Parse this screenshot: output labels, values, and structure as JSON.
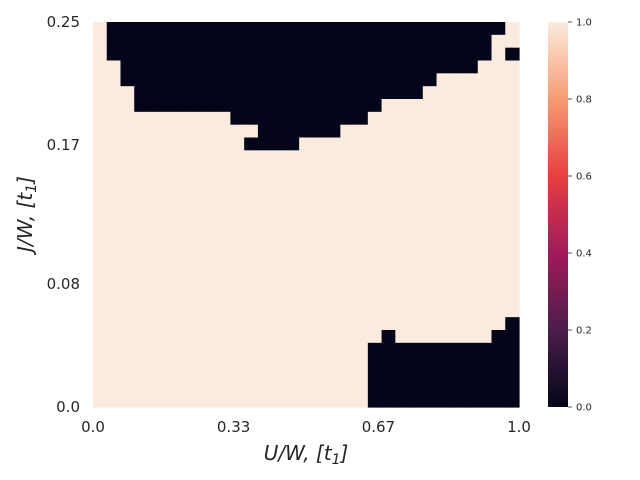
{
  "chart_data": {
    "type": "heatmap",
    "title": "",
    "xlabel": "U/W, [t",
    "xlabel_sub": "1",
    "xlabel_close": "]",
    "ylabel": "J/W, [t",
    "ylabel_sub": "1",
    "ylabel_close": "]",
    "xlim": [
      0.0,
      1.0
    ],
    "ylim": [
      0.0,
      0.25
    ],
    "x_tick_labels": [
      "0.0",
      "0.33",
      "0.67",
      "1.0"
    ],
    "x_tick_values": [
      0.0,
      0.33,
      0.67,
      1.0
    ],
    "y_tick_labels": [
      "0.0",
      "0.08",
      "0.17",
      "0.25"
    ],
    "y_tick_values": [
      0.0,
      0.08,
      0.17,
      0.25
    ],
    "grid": false,
    "colormap": "rocket",
    "colorbar": {
      "range": [
        0.0,
        1.0
      ],
      "tick_labels": [
        "0.0",
        "0.2",
        "0.4",
        "0.6",
        "0.8",
        "1.0"
      ],
      "tick_values": [
        0.0,
        0.2,
        0.4,
        0.6,
        0.8,
        1.0
      ],
      "stops": [
        "#03051a",
        "#4c1d4b",
        "#a11a5b",
        "#e83f3f",
        "#f69c73",
        "#faebdd"
      ]
    },
    "grid_shape": {
      "cols": 31,
      "rows": 30
    },
    "cell_values": [
      0,
      1
    ],
    "regions_value_0": [
      {
        "row": 0,
        "col_start": 1,
        "col_end": 29
      },
      {
        "row": 1,
        "col_start": 1,
        "col_end": 28
      },
      {
        "row": 2,
        "col_start": 1,
        "col_end": 28
      },
      {
        "row": 2,
        "col_start": 30,
        "col_end": 30
      },
      {
        "row": 3,
        "col_start": 2,
        "col_end": 26
      },
      {
        "row": 3,
        "col_start": 27,
        "col_end": 27
      },
      {
        "row": 4,
        "col_start": 2,
        "col_end": 24
      },
      {
        "row": 5,
        "col_start": 3,
        "col_end": 23
      },
      {
        "row": 6,
        "col_start": 3,
        "col_end": 20
      },
      {
        "row": 7,
        "col_start": 10,
        "col_end": 19
      },
      {
        "row": 8,
        "col_start": 12,
        "col_end": 17
      },
      {
        "row": 9,
        "col_start": 11,
        "col_end": 14
      },
      {
        "row": 23,
        "col_start": 30,
        "col_end": 30
      },
      {
        "row": 24,
        "col_start": 29,
        "col_end": 30
      },
      {
        "row": 24,
        "col_start": 21,
        "col_end": 21
      },
      {
        "row": 25,
        "col_start": 20,
        "col_end": 30
      },
      {
        "row": 26,
        "col_start": 20,
        "col_end": 30
      },
      {
        "row": 27,
        "col_start": 20,
        "col_end": 30
      },
      {
        "row": 28,
        "col_start": 20,
        "col_end": 30
      },
      {
        "row": 29,
        "col_start": 20,
        "col_end": 30
      }
    ],
    "cell_colors": {
      "0": "#03051a",
      "1": "#faebdd"
    }
  }
}
